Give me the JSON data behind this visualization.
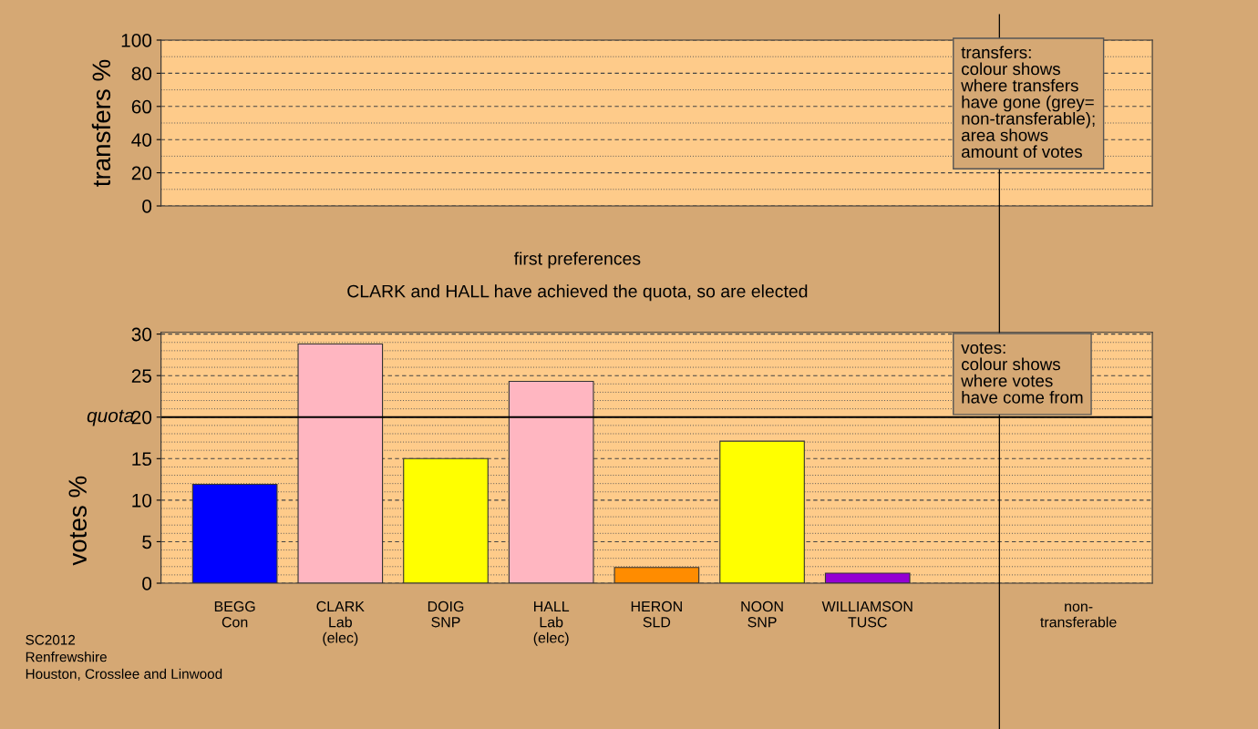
{
  "chart_data": [
    {
      "type": "bar",
      "categories": [
        null,
        null,
        null,
        null,
        null,
        null,
        null,
        null,
        null
      ],
      "values": [
        null,
        null,
        null,
        null,
        null,
        null,
        null,
        null,
        null
      ],
      "ylabel": "transfers %",
      "ylim": [
        0,
        100
      ],
      "yticks": [
        0,
        20,
        40,
        60,
        80,
        100
      ],
      "grid": "y",
      "tick_labels": "y",
      "annotations": [
        "transfers:\ncolour shows\nwhere transfers\nhave gone (grey=\nnon-transferable);\narea shows\namount of votes"
      ]
    },
    {
      "type": "bar",
      "title": "first preferences",
      "subtitle": "CLARK and HALL have achieved the quota, so are elected",
      "ylabel": "votes %",
      "categories": [
        "BEGG\nCon",
        "CLARK\nLab\n(elec)",
        "DOIG\nSNP",
        "HALL\nLab\n(elec)",
        "HERON\nSLD",
        "NOON\nSNP",
        "WILLIAMSON\nTUSC",
        null,
        "non-\ntransferable"
      ],
      "values": [
        11.9,
        28.8,
        15.0,
        24.3,
        1.9,
        17.1,
        1.2,
        null,
        null
      ],
      "colors": [
        "#0000ff",
        "#ffb6c1",
        "#ffff00",
        "#ffb6c1",
        "#ff8c00",
        "#ffff00",
        "#9400d3",
        "#ffffff",
        "#ffffff"
      ],
      "ylim": [
        0,
        30.2
      ],
      "yticks": [
        0,
        5,
        10,
        15,
        20,
        25,
        30
      ],
      "grid": "y",
      "ref_lines": [
        {
          "axis": "y",
          "value": 20,
          "label": "quota",
          "color": "#000000"
        }
      ],
      "annotations": [
        "votes:\ncolour shows\nwhere votes\nhave come from",
        "SC2012\nRenfrewshire\nHouston, Crosslee and Linwood"
      ]
    }
  ]
}
